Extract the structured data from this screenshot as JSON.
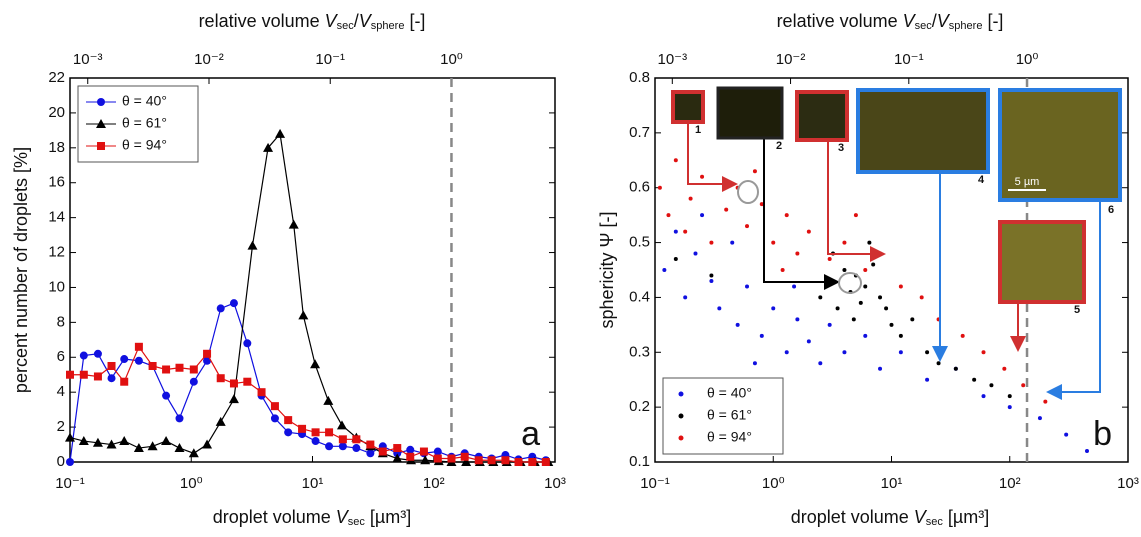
{
  "chart_data": [
    {
      "type": "line",
      "panel": "a",
      "x_label": [
        "droplet volume ",
        "V",
        "sec",
        " [µm³]"
      ],
      "x2_label": [
        "relative volume ",
        "V",
        "sec",
        "/",
        "V",
        "sphere",
        " [-]"
      ],
      "y_label": "percent number of droplets [%]",
      "xscale": "log",
      "xlim": [
        0.1,
        1000
      ],
      "xticks": [
        {
          "value": 0.1,
          "label": "10⁻¹"
        },
        {
          "value": 1,
          "label": "10⁰"
        },
        {
          "value": 10,
          "label": "10¹"
        },
        {
          "value": 100,
          "label": "10²"
        },
        {
          "value": 1000,
          "label": "10³"
        }
      ],
      "x2lim": [
        0.000714,
        7.14
      ],
      "x2ticks": [
        {
          "value": 0.001,
          "label": "10⁻³"
        },
        {
          "value": 0.01,
          "label": "10⁻²"
        },
        {
          "value": 0.1,
          "label": "10⁻¹"
        },
        {
          "value": 1,
          "label": "10⁰"
        }
      ],
      "ylim": [
        0,
        22
      ],
      "yticks": [
        0,
        2,
        4,
        6,
        8,
        10,
        12,
        14,
        16,
        18,
        20,
        22
      ],
      "reference_x": 140,
      "legend": "upper-left",
      "series": [
        {
          "name": "θ = 40°",
          "color": "#1010e0",
          "marker": "circle",
          "x": [
            0.1,
            0.13,
            0.17,
            0.22,
            0.28,
            0.37,
            0.48,
            0.62,
            0.8,
            1.05,
            1.35,
            1.75,
            2.25,
            2.9,
            3.8,
            4.9,
            6.3,
            8.2,
            10.6,
            13.7,
            17.8,
            23,
            30,
            38,
            50,
            64,
            83,
            108,
            140,
            180,
            235,
            300,
            390,
            500,
            650,
            840
          ],
          "values": [
            0,
            6.1,
            6.2,
            4.8,
            5.9,
            5.8,
            5.5,
            3.8,
            2.5,
            4.6,
            5.8,
            8.8,
            9.1,
            6.8,
            3.8,
            2.5,
            1.7,
            1.6,
            1.2,
            0.9,
            0.9,
            0.8,
            0.5,
            0.9,
            0.5,
            0.7,
            0.5,
            0.6,
            0.3,
            0.5,
            0.3,
            0.2,
            0.4,
            0.15,
            0.3,
            0.1
          ]
        },
        {
          "name": "θ = 61°",
          "color": "#000000",
          "marker": "triangle",
          "x": [
            0.1,
            0.13,
            0.17,
            0.22,
            0.28,
            0.37,
            0.48,
            0.62,
            0.8,
            1.05,
            1.35,
            1.75,
            2.25,
            3.2,
            4.3,
            5.4,
            7,
            8.4,
            10.5,
            13.5,
            17.5,
            23,
            30,
            38,
            50,
            65,
            85,
            110,
            140,
            185,
            240,
            310,
            400,
            520,
            680,
            880
          ],
          "values": [
            1.4,
            1.2,
            1.1,
            1.0,
            1.2,
            0.8,
            0.9,
            1.2,
            0.8,
            0.5,
            1.0,
            2.3,
            3.6,
            12.4,
            18.0,
            18.8,
            13.6,
            8.4,
            5.6,
            3.5,
            2.1,
            1.4,
            0.9,
            0.5,
            0.2,
            0.1,
            0.1,
            0.05,
            0,
            0,
            0,
            0,
            0,
            0,
            0,
            0
          ]
        },
        {
          "name": "θ = 94°",
          "color": "#e01010",
          "marker": "square",
          "x": [
            0.1,
            0.13,
            0.17,
            0.22,
            0.28,
            0.37,
            0.48,
            0.62,
            0.8,
            1.05,
            1.35,
            1.75,
            2.25,
            2.9,
            3.8,
            4.9,
            6.3,
            8.2,
            10.6,
            13.7,
            17.8,
            23,
            30,
            38,
            50,
            64,
            83,
            108,
            140,
            180,
            235,
            300,
            390,
            500,
            650,
            840
          ],
          "values": [
            5.0,
            5.0,
            4.9,
            5.5,
            4.6,
            6.6,
            5.5,
            5.3,
            5.4,
            5.3,
            6.2,
            4.8,
            4.5,
            4.6,
            4.0,
            3.2,
            2.4,
            1.9,
            1.7,
            1.7,
            1.3,
            1.3,
            1.0,
            0.6,
            0.8,
            0.3,
            0.6,
            0.2,
            0.2,
            0.3,
            0.1,
            0.1,
            0.1,
            0,
            0,
            0
          ]
        }
      ]
    },
    {
      "type": "scatter",
      "panel": "b",
      "x_label": [
        "droplet volume ",
        "V",
        "sec",
        " [µm³]"
      ],
      "x2_label": [
        "relative volume ",
        "V",
        "sec",
        "/",
        "V",
        "sphere",
        " [-]"
      ],
      "y_label": "sphericity Ψ [-]",
      "xscale": "log",
      "xlim": [
        0.1,
        1000
      ],
      "xticks": [
        {
          "value": 0.1,
          "label": "10⁻¹"
        },
        {
          "value": 1,
          "label": "10⁰"
        },
        {
          "value": 10,
          "label": "10¹"
        },
        {
          "value": 100,
          "label": "10²"
        },
        {
          "value": 1000,
          "label": "10³"
        }
      ],
      "x2lim": [
        0.000714,
        7.14
      ],
      "x2ticks": [
        {
          "value": 0.001,
          "label": "10⁻³"
        },
        {
          "value": 0.01,
          "label": "10⁻²"
        },
        {
          "value": 0.1,
          "label": "10⁻¹"
        },
        {
          "value": 1,
          "label": "10⁰"
        }
      ],
      "ylim": [
        0.1,
        0.8
      ],
      "yticks": [
        0.1,
        0.2,
        0.3,
        0.4,
        0.5,
        0.6,
        0.7,
        0.8
      ],
      "reference_x": 140,
      "legend": "lower-left",
      "inset_labels": [
        "1",
        "2",
        "3",
        "4",
        "5",
        "6"
      ],
      "scale_bar": "5 µm",
      "series": [
        {
          "name": "θ = 40°",
          "color": "#1010e0",
          "x": [
            0.12,
            0.15,
            0.18,
            0.22,
            0.3,
            0.35,
            0.45,
            0.5,
            0.6,
            0.8,
            1.0,
            1.3,
            1.6,
            2.0,
            2.5,
            3.0,
            4.0,
            6,
            8,
            12,
            20,
            35,
            60,
            100,
            180,
            300,
            450,
            0.25,
            0.7,
            1.5
          ],
          "values": [
            0.45,
            0.52,
            0.4,
            0.48,
            0.43,
            0.38,
            0.5,
            0.35,
            0.42,
            0.33,
            0.38,
            0.3,
            0.36,
            0.32,
            0.28,
            0.35,
            0.3,
            0.33,
            0.27,
            0.3,
            0.25,
            0.27,
            0.22,
            0.2,
            0.18,
            0.15,
            0.12,
            0.55,
            0.28,
            0.42
          ]
        },
        {
          "name": "θ = 61°",
          "color": "#000000",
          "x": [
            0.15,
            0.3,
            2.5,
            3,
            3.5,
            4,
            4.5,
            5,
            5.5,
            6,
            7,
            8,
            3.2,
            4.8,
            10,
            12,
            15,
            20,
            25,
            35,
            50,
            70,
            100,
            9,
            6.5
          ],
          "values": [
            0.47,
            0.44,
            0.4,
            0.43,
            0.38,
            0.45,
            0.41,
            0.44,
            0.39,
            0.42,
            0.46,
            0.4,
            0.48,
            0.36,
            0.35,
            0.33,
            0.36,
            0.3,
            0.28,
            0.27,
            0.25,
            0.24,
            0.22,
            0.38,
            0.5
          ]
        },
        {
          "name": "θ = 94°",
          "color": "#e01010",
          "x": [
            0.11,
            0.13,
            0.15,
            0.18,
            0.2,
            0.25,
            0.3,
            0.4,
            0.5,
            0.6,
            0.8,
            1.0,
            1.3,
            1.6,
            2.0,
            3,
            4,
            6,
            8,
            12,
            18,
            25,
            40,
            60,
            90,
            130,
            200,
            0.7,
            1.2,
            5
          ],
          "values": [
            0.6,
            0.55,
            0.65,
            0.52,
            0.58,
            0.62,
            0.5,
            0.56,
            0.6,
            0.53,
            0.57,
            0.5,
            0.55,
            0.48,
            0.52,
            0.47,
            0.5,
            0.45,
            0.48,
            0.42,
            0.4,
            0.36,
            0.33,
            0.3,
            0.27,
            0.24,
            0.21,
            0.63,
            0.45,
            0.55
          ]
        }
      ]
    }
  ]
}
